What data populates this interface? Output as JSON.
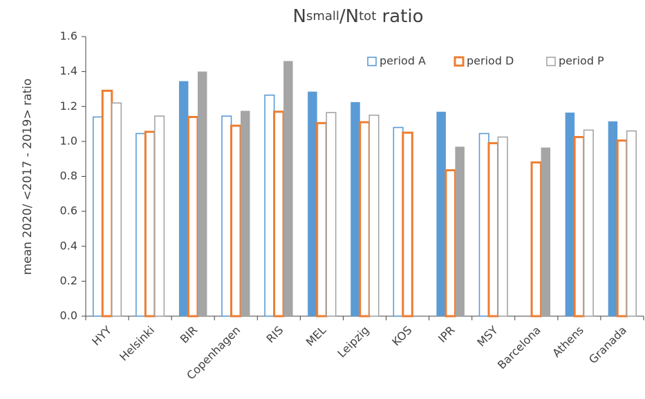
{
  "chart_data": {
    "type": "bar",
    "title": [
      {
        "text": "N"
      },
      {
        "text": "small",
        "sub": true
      },
      {
        "text": "/N"
      },
      {
        "text": "tot",
        "sub": true
      },
      {
        "text": " ratio"
      }
    ],
    "y_label": "mean 2020/ <2017 - 2019> ratio",
    "categories": [
      "HYY",
      "Helsinki",
      "BIR",
      "Copenhagen",
      "RIS",
      "MEL",
      "Leipzig",
      "KOS",
      "IPR",
      "MSY",
      "Barcelona",
      "Athens",
      "Granada"
    ],
    "series": [
      {
        "name": "period A",
        "color": "#5b9bd5",
        "values": [
          1.14,
          1.045,
          1.345,
          1.145,
          1.265,
          1.285,
          1.225,
          1.08,
          1.17,
          1.045,
          null,
          1.165,
          1.115
        ],
        "filled": [
          false,
          false,
          true,
          false,
          false,
          true,
          true,
          false,
          true,
          false,
          false,
          true,
          true
        ]
      },
      {
        "name": "period D",
        "color": "#ed7d31",
        "values": [
          1.29,
          1.055,
          1.14,
          1.09,
          1.17,
          1.105,
          1.11,
          1.05,
          0.835,
          0.99,
          0.88,
          1.025,
          1.005
        ],
        "filled": [
          false,
          false,
          false,
          false,
          false,
          false,
          false,
          false,
          false,
          false,
          false,
          false,
          false
        ]
      },
      {
        "name": "period P",
        "color": "#a5a5a5",
        "values": [
          1.22,
          1.145,
          1.4,
          1.175,
          1.46,
          1.165,
          1.15,
          null,
          0.97,
          1.025,
          0.965,
          1.065,
          1.06
        ],
        "filled": [
          false,
          false,
          true,
          true,
          true,
          false,
          false,
          false,
          true,
          false,
          true,
          false,
          false
        ]
      }
    ],
    "ylim": [
      0,
      1.6
    ],
    "yticks": [
      {
        "value": 0,
        "label": "0.0"
      },
      {
        "value": 0.2,
        "label": "0.2"
      },
      {
        "value": 0.4,
        "label": "0.4"
      },
      {
        "value": 0.6,
        "label": "0.6"
      },
      {
        "value": 0.8,
        "label": "0.8"
      },
      {
        "value": 1,
        "label": "1.0"
      },
      {
        "value": 1.2,
        "label": "1.2"
      },
      {
        "value": 1.4,
        "label": "1.4"
      },
      {
        "value": 1.6,
        "label": "1.6"
      }
    ],
    "grid": false,
    "legend": "top-right"
  }
}
